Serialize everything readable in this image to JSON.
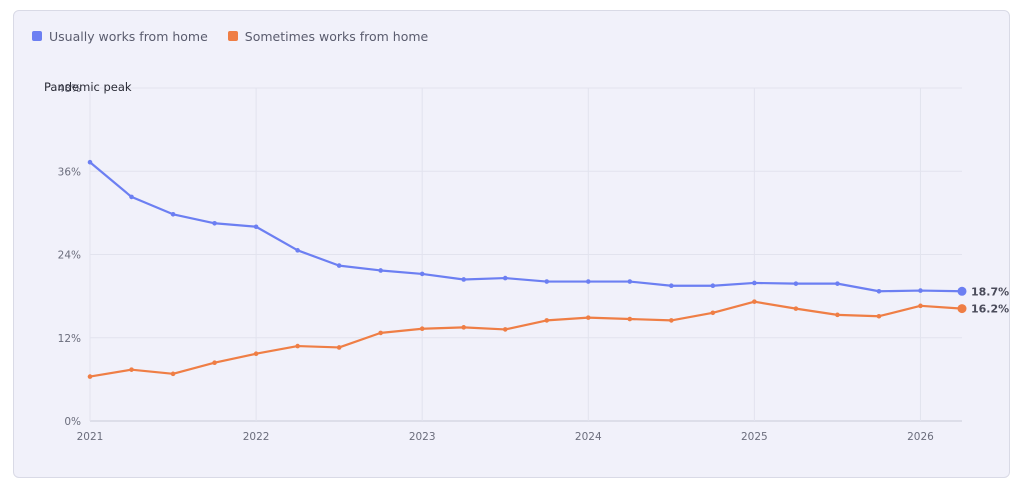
{
  "chart_data": {
    "type": "line",
    "x_ticks": [
      "2021",
      "2022",
      "2023",
      "2024",
      "2025",
      "2026"
    ],
    "y_ticks": [
      "0%",
      "12%",
      "24%",
      "36%",
      "48%"
    ],
    "ylim": [
      0,
      48
    ],
    "x_range": [
      2021.0,
      2026.25
    ],
    "grid": true,
    "legend_position": "top-left",
    "annotation": {
      "label": "Pandemic peak",
      "x": 2021.0,
      "y": 48
    },
    "series": [
      {
        "name": "Usually works from home",
        "color": "#6c7ff2",
        "end_label": "18.7%",
        "x": [
          2021.0,
          2021.25,
          2021.5,
          2021.75,
          2022.0,
          2022.25,
          2022.5,
          2022.75,
          2023.0,
          2023.25,
          2023.5,
          2023.75,
          2024.0,
          2024.25,
          2024.5,
          2024.75,
          2025.0,
          2025.25,
          2025.5,
          2025.75,
          2026.0,
          2026.25
        ],
        "values": [
          37.3,
          32.3,
          29.8,
          28.5,
          28.0,
          24.6,
          22.4,
          21.7,
          21.2,
          20.4,
          20.6,
          20.1,
          20.1,
          20.1,
          19.5,
          19.5,
          19.9,
          19.8,
          19.8,
          18.7,
          18.8,
          18.7
        ]
      },
      {
        "name": "Sometimes works from home",
        "color": "#ef7e45",
        "end_label": "16.2%",
        "x": [
          2021.0,
          2021.25,
          2021.5,
          2021.75,
          2022.0,
          2022.25,
          2022.5,
          2022.75,
          2023.0,
          2023.25,
          2023.5,
          2023.75,
          2024.0,
          2024.25,
          2024.5,
          2024.75,
          2025.0,
          2025.25,
          2025.5,
          2025.75,
          2026.0,
          2026.25
        ],
        "values": [
          6.4,
          7.4,
          6.8,
          8.4,
          9.7,
          10.8,
          10.6,
          12.7,
          13.3,
          13.5,
          13.2,
          14.5,
          14.9,
          14.7,
          14.5,
          15.6,
          17.2,
          16.2,
          15.3,
          15.1,
          16.6,
          16.2
        ]
      }
    ]
  }
}
